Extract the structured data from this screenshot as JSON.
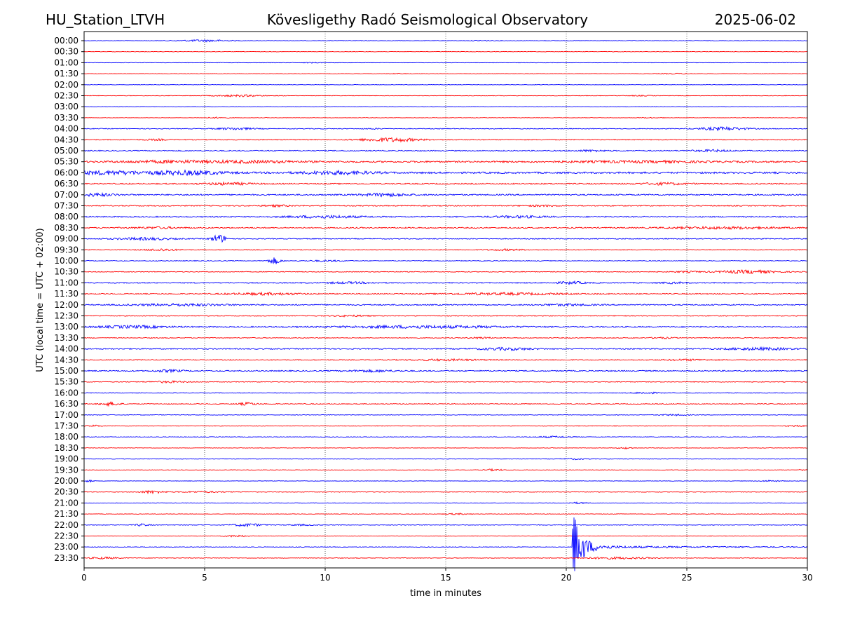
{
  "header": {
    "station": "HU_Station_LTVH",
    "observatory": "Kövesligethy Radó Seismological Observatory",
    "date": "2025-06-02"
  },
  "chart_data": {
    "type": "line",
    "title": "Kövesligethy Radó Seismological Observatory",
    "xlabel": "time in minutes",
    "ylabel": "UTC (local time = UTC + 02:00)",
    "xlim": [
      0,
      30
    ],
    "x_ticks": [
      "0",
      "5",
      "10",
      "15",
      "20",
      "25",
      "30"
    ],
    "x_tick_values": [
      0,
      5,
      10,
      15,
      20,
      25,
      30
    ],
    "grid": "vertical dotted at each x tick",
    "colors": {
      "even_trace": "#0000ff",
      "odd_trace": "#ff0000"
    },
    "rows": [
      {
        "label": "00:00",
        "noise": 0.35,
        "bursts": [
          [
            5,
            1.0,
            1.3
          ],
          [
            16.5,
            0.4,
            0.5
          ]
        ]
      },
      {
        "label": "00:30",
        "noise": 0.3,
        "bursts": []
      },
      {
        "label": "01:00",
        "noise": 0.3,
        "bursts": [
          [
            9.5,
            0.4,
            0.5
          ]
        ]
      },
      {
        "label": "01:30",
        "noise": 0.3,
        "bursts": [
          [
            24.5,
            0.7,
            0.6
          ],
          [
            13,
            0.4,
            0.4
          ]
        ]
      },
      {
        "label": "02:00",
        "noise": 0.3,
        "bursts": []
      },
      {
        "label": "02:30",
        "noise": 0.35,
        "bursts": [
          [
            6.5,
            1.0,
            1.2
          ],
          [
            23,
            0.5,
            0.5
          ]
        ]
      },
      {
        "label": "03:00",
        "noise": 0.3,
        "bursts": []
      },
      {
        "label": "03:30",
        "noise": 0.3,
        "bursts": [
          [
            5.5,
            0.5,
            0.7
          ],
          [
            23.5,
            0.5,
            0.5
          ]
        ]
      },
      {
        "label": "04:00",
        "noise": 0.5,
        "bursts": [
          [
            6.3,
            0.8,
            1.4
          ],
          [
            26.5,
            1.0,
            2.2
          ],
          [
            12,
            0.4,
            0.6
          ]
        ]
      },
      {
        "label": "04:30",
        "noise": 0.6,
        "bursts": [
          [
            12.7,
            1.2,
            2.6
          ],
          [
            3,
            0.5,
            0.9
          ]
        ]
      },
      {
        "label": "05:00",
        "noise": 0.7,
        "bursts": [
          [
            26,
            0.8,
            1.2
          ],
          [
            21,
            0.6,
            1.0
          ]
        ]
      },
      {
        "label": "05:30",
        "noise": 1.1,
        "bursts": [
          [
            3.5,
            2.0,
            1.4
          ],
          [
            7,
            2.0,
            1.3
          ],
          [
            23,
            3.0,
            1.0
          ]
        ]
      },
      {
        "label": "06:00",
        "noise": 1.2,
        "bursts": [
          [
            1,
            1.5,
            2.2
          ],
          [
            4.2,
            1.5,
            2.6
          ],
          [
            10.5,
            1.5,
            2.0
          ]
        ]
      },
      {
        "label": "06:30",
        "noise": 0.8,
        "bursts": [
          [
            6,
            1.0,
            1.5
          ],
          [
            24,
            1.0,
            1.3
          ]
        ]
      },
      {
        "label": "07:00",
        "noise": 0.9,
        "bursts": [
          [
            0.5,
            0.8,
            1.8
          ],
          [
            12.5,
            1.0,
            1.9
          ]
        ]
      },
      {
        "label": "07:30",
        "noise": 0.7,
        "bursts": [
          [
            8,
            0.6,
            1.0
          ],
          [
            19,
            0.6,
            0.9
          ]
        ]
      },
      {
        "label": "08:00",
        "noise": 0.8,
        "bursts": [
          [
            10,
            1.5,
            1.6
          ],
          [
            18,
            1.2,
            1.2
          ]
        ]
      },
      {
        "label": "08:30",
        "noise": 0.8,
        "bursts": [
          [
            26.5,
            2.5,
            1.3
          ],
          [
            3,
            1.0,
            1.0
          ]
        ]
      },
      {
        "label": "09:00",
        "noise": 0.6,
        "bursts": [
          [
            2.5,
            1.2,
            1.6
          ],
          [
            5.6,
            0.3,
            5.5
          ]
        ]
      },
      {
        "label": "09:30",
        "noise": 0.55,
        "bursts": [
          [
            3.2,
            0.6,
            1.5
          ],
          [
            17.5,
            0.8,
            0.9
          ]
        ]
      },
      {
        "label": "10:00",
        "noise": 0.5,
        "bursts": [
          [
            7.9,
            0.25,
            4.5
          ],
          [
            10,
            0.8,
            0.8
          ]
        ]
      },
      {
        "label": "10:30",
        "noise": 0.55,
        "bursts": [
          [
            27.5,
            1.2,
            2.2
          ],
          [
            25,
            0.6,
            0.8
          ]
        ]
      },
      {
        "label": "11:00",
        "noise": 0.7,
        "bursts": [
          [
            20.2,
            0.6,
            1.6
          ],
          [
            11,
            1.0,
            1.0
          ],
          [
            24.5,
            0.6,
            0.9
          ]
        ]
      },
      {
        "label": "11:30",
        "noise": 0.7,
        "bursts": [
          [
            7.5,
            1.5,
            1.4
          ],
          [
            17.5,
            2.5,
            1.3
          ]
        ]
      },
      {
        "label": "12:00",
        "noise": 0.8,
        "bursts": [
          [
            4,
            2.0,
            1.3
          ],
          [
            20,
            1.0,
            1.1
          ]
        ]
      },
      {
        "label": "12:30",
        "noise": 0.55,
        "bursts": [
          [
            11,
            0.8,
            0.9
          ]
        ]
      },
      {
        "label": "13:00",
        "noise": 0.8,
        "bursts": [
          [
            2,
            1.5,
            1.6
          ],
          [
            14,
            3.5,
            1.6
          ]
        ]
      },
      {
        "label": "13:30",
        "noise": 0.5,
        "bursts": [
          [
            16.5,
            0.5,
            1.0
          ],
          [
            24,
            0.5,
            0.9
          ]
        ]
      },
      {
        "label": "14:00",
        "noise": 0.7,
        "bursts": [
          [
            17.5,
            1.2,
            1.6
          ],
          [
            28,
            1.5,
            1.6
          ]
        ]
      },
      {
        "label": "14:30",
        "noise": 0.6,
        "bursts": [
          [
            15,
            1.5,
            1.0
          ],
          [
            25,
            1.0,
            0.9
          ]
        ]
      },
      {
        "label": "15:00",
        "noise": 0.8,
        "bursts": [
          [
            3.5,
            0.6,
            1.4
          ],
          [
            12,
            1.0,
            1.2
          ]
        ]
      },
      {
        "label": "15:30",
        "noise": 0.5,
        "bursts": [
          [
            3.5,
            0.8,
            1.1
          ]
        ]
      },
      {
        "label": "16:00",
        "noise": 0.45,
        "bursts": [
          [
            23.3,
            0.5,
            1.2
          ]
        ]
      },
      {
        "label": "16:30",
        "noise": 0.55,
        "bursts": [
          [
            1.1,
            0.4,
            2.4
          ],
          [
            6.8,
            0.4,
            1.8
          ]
        ]
      },
      {
        "label": "17:00",
        "noise": 0.4,
        "bursts": [
          [
            24.5,
            0.6,
            0.9
          ]
        ]
      },
      {
        "label": "17:30",
        "noise": 0.4,
        "bursts": [
          [
            0.4,
            0.3,
            1.2
          ],
          [
            29.5,
            0.4,
            0.9
          ]
        ]
      },
      {
        "label": "18:00",
        "noise": 0.45,
        "bursts": [
          [
            19.5,
            0.8,
            0.9
          ]
        ]
      },
      {
        "label": "18:30",
        "noise": 0.35,
        "bursts": [
          [
            22.5,
            0.3,
            1.2
          ]
        ]
      },
      {
        "label": "19:00",
        "noise": 0.35,
        "bursts": [
          [
            20.3,
            0.5,
            0.9
          ]
        ]
      },
      {
        "label": "19:30",
        "noise": 0.35,
        "bursts": [
          [
            17,
            0.4,
            1.2
          ],
          [
            29.8,
            0.2,
            1.0
          ]
        ]
      },
      {
        "label": "20:00",
        "noise": 0.35,
        "bursts": [
          [
            0.2,
            0.2,
            1.2
          ],
          [
            28.5,
            0.4,
            0.9
          ]
        ]
      },
      {
        "label": "20:30",
        "noise": 0.4,
        "bursts": [
          [
            2.8,
            0.5,
            1.9
          ],
          [
            5,
            1.0,
            0.8
          ]
        ]
      },
      {
        "label": "21:00",
        "noise": 0.35,
        "bursts": [
          [
            20.5,
            0.4,
            1.0
          ]
        ]
      },
      {
        "label": "21:30",
        "noise": 0.35,
        "bursts": [
          [
            15.5,
            0.5,
            0.8
          ]
        ]
      },
      {
        "label": "22:00",
        "noise": 0.4,
        "bursts": [
          [
            2.4,
            0.3,
            1.6
          ],
          [
            6.8,
            0.6,
            2.0
          ],
          [
            9,
            0.5,
            0.9
          ]
        ]
      },
      {
        "label": "22:30",
        "noise": 0.35,
        "bursts": [
          [
            6.3,
            0.5,
            1.2
          ]
        ]
      },
      {
        "label": "23:00",
        "noise": 0.4,
        "bursts": [],
        "event": {
          "onset": 20.25,
          "peak": 55,
          "decay": 2.8,
          "floor": 1.6
        }
      },
      {
        "label": "23:30",
        "noise": 0.4,
        "bursts": [
          [
            0.8,
            0.6,
            1.2
          ],
          [
            22,
            1.5,
            1.3
          ]
        ]
      }
    ]
  }
}
